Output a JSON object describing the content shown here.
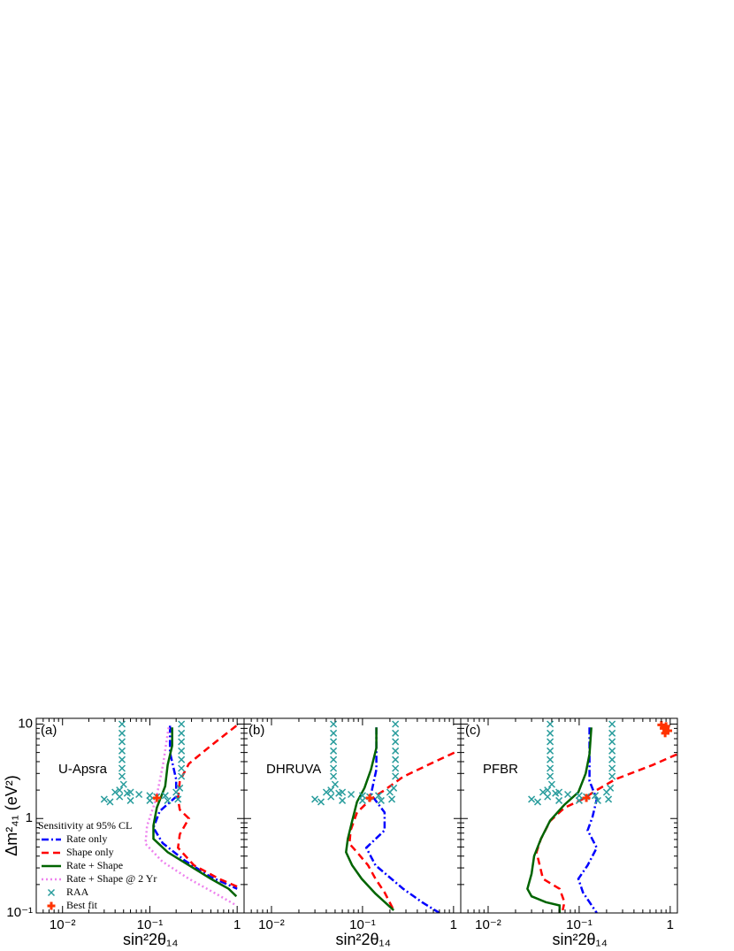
{
  "chart_data": [
    {
      "type": "line",
      "panel_label": "(a)",
      "title": "U-Apsra",
      "log_x": true,
      "log_y": true,
      "xlim": [
        0.005,
        1.2
      ],
      "ylim": [
        0.1,
        11.5
      ],
      "xticks": [
        {
          "value": 0.01,
          "label": "10⁻²"
        },
        {
          "value": 0.1,
          "label": "10⁻¹"
        },
        1
      ],
      "yticks": [
        {
          "value": 0.1,
          "label": "10⁻¹"
        },
        1,
        10
      ],
      "x_label": "sin²2θ₁₄",
      "y_label": "Δm²₄₁ (eV²)",
      "legend": {
        "title": "Sensitivity at 95% CL",
        "position": "lower left"
      },
      "series": [
        {
          "name": "Rate only",
          "color": "#0000ff",
          "style": "dashdot",
          "x": [
            0.17,
            0.17,
            0.2,
            0.2,
            0.13,
            0.11,
            0.14,
            0.25,
            0.5,
            1.0
          ],
          "y": [
            9.6,
            5,
            2.6,
            1.7,
            1.2,
            0.8,
            0.55,
            0.36,
            0.24,
            0.18
          ]
        },
        {
          "name": "Shape only",
          "color": "#ff0000",
          "style": "dashed",
          "x": [
            0.98,
            0.5,
            0.28,
            0.22,
            0.21,
            0.22,
            0.28,
            0.22,
            0.21,
            0.32,
            0.62,
            1.0
          ],
          "y": [
            9.6,
            5.9,
            3.8,
            2.5,
            1.6,
            1.24,
            1.0,
            0.68,
            0.49,
            0.32,
            0.23,
            0.19
          ]
        },
        {
          "name": "Rate + Shape",
          "color": "#006400",
          "style": "solid",
          "x": [
            0.18,
            0.18,
            0.16,
            0.15,
            0.12,
            0.11,
            0.11,
            0.16,
            0.28,
            0.5,
            0.8,
            0.98
          ],
          "y": [
            9.2,
            5.9,
            3.7,
            2.2,
            1.3,
            0.84,
            0.61,
            0.44,
            0.32,
            0.23,
            0.18,
            0.15
          ]
        },
        {
          "name": "Rate + Shape @ 2 Yr",
          "color": "#ee82ee",
          "style": "dotted",
          "x": [
            0.164,
            0.142,
            0.118,
            0.093,
            0.089,
            0.139,
            0.28,
            0.57,
            0.98
          ],
          "y": [
            9.2,
            3.8,
            1.6,
            0.84,
            0.54,
            0.35,
            0.23,
            0.16,
            0.12
          ]
        },
        {
          "name": "RAA",
          "color": "#2a9d9d",
          "style": "x",
          "x": [
            0.048,
            0.048,
            0.048,
            0.048,
            0.048,
            0.048,
            0.048,
            0.23,
            0.23,
            0.23,
            0.23,
            0.23,
            0.23,
            0.23,
            0.05,
            0.045,
            0.04,
            0.055,
            0.06,
            0.075,
            0.1,
            0.12,
            0.15,
            0.2,
            0.22,
            0.21,
            0.16,
            0.1,
            0.06,
            0.035,
            0.03,
            0.045
          ],
          "y": [
            10,
            8,
            6.5,
            5.2,
            4.2,
            3.4,
            2.8,
            10,
            8,
            6.5,
            5.2,
            4.2,
            3.4,
            2.8,
            2.3,
            2.0,
            1.9,
            1.85,
            1.9,
            1.8,
            1.75,
            1.7,
            1.75,
            1.9,
            2.1,
            1.6,
            1.55,
            1.55,
            1.55,
            1.5,
            1.6,
            1.7
          ]
        },
        {
          "name": "Best fit",
          "color": "#ff3300",
          "style": "plus",
          "x": [
            0.12
          ],
          "y": [
            1.65
          ]
        }
      ]
    },
    {
      "type": "line",
      "panel_label": "(b)",
      "title": "DHRUVA",
      "log_x": true,
      "log_y": true,
      "xlim": [
        0.005,
        1.2
      ],
      "ylim": [
        0.1,
        11.5
      ],
      "xticks": [
        {
          "value": 0.01,
          "label": "10⁻²"
        },
        {
          "value": 0.1,
          "label": "10⁻¹"
        },
        1
      ],
      "yticks": [
        0.1,
        1,
        10
      ],
      "x_label": "sin²2θ₁₄",
      "series": [
        {
          "color": "#0000ff",
          "style": "dashdot",
          "x": [
            0.142,
            0.142,
            0.124,
            0.175,
            0.175,
            0.11,
            0.139,
            0.28,
            0.45,
            0.7
          ],
          "y": [
            9.2,
            3.3,
            1.8,
            1.16,
            0.75,
            0.49,
            0.32,
            0.18,
            0.13,
            0.1
          ]
        },
        {
          "color": "#ff0000",
          "style": "dashed",
          "x": [
            1.02,
            0.57,
            0.28,
            0.175,
            0.124,
            0.087,
            0.074,
            0.072,
            0.087,
            0.115,
            0.139,
            0.175,
            0.22
          ],
          "y": [
            4.98,
            3.84,
            2.77,
            2.0,
            1.61,
            1.16,
            0.75,
            0.54,
            0.44,
            0.32,
            0.23,
            0.165,
            0.107
          ]
        },
        {
          "color": "#006400",
          "style": "solid",
          "x": [
            0.142,
            0.142,
            0.124,
            0.105,
            0.087,
            0.077,
            0.069,
            0.066,
            0.077,
            0.098,
            0.139,
            0.22
          ],
          "y": [
            9.2,
            5.6,
            3.3,
            2.1,
            1.5,
            0.94,
            0.61,
            0.44,
            0.32,
            0.23,
            0.16,
            0.107
          ]
        },
        {
          "color": "#2a9d9d",
          "style": "x",
          "x": [
            0.048,
            0.048,
            0.048,
            0.048,
            0.048,
            0.048,
            0.048,
            0.23,
            0.23,
            0.23,
            0.23,
            0.23,
            0.23,
            0.23,
            0.05,
            0.045,
            0.04,
            0.055,
            0.06,
            0.075,
            0.1,
            0.12,
            0.15,
            0.2,
            0.22,
            0.21,
            0.16,
            0.1,
            0.06,
            0.035,
            0.03,
            0.045
          ],
          "y": [
            10,
            8,
            6.5,
            5.2,
            4.2,
            3.4,
            2.8,
            10,
            8,
            6.5,
            5.2,
            4.2,
            3.4,
            2.8,
            2.3,
            2.0,
            1.9,
            1.85,
            1.9,
            1.8,
            1.75,
            1.7,
            1.75,
            1.9,
            2.1,
            1.6,
            1.55,
            1.55,
            1.55,
            1.5,
            1.6,
            1.7
          ]
        },
        {
          "color": "#ff3300",
          "style": "plus",
          "x": [
            0.12
          ],
          "y": [
            1.65
          ]
        }
      ]
    },
    {
      "type": "line",
      "panel_label": "(c)",
      "title": "PFBR",
      "log_x": true,
      "log_y": true,
      "xlim": [
        0.005,
        1.2
      ],
      "ylim": [
        0.1,
        11.5
      ],
      "xticks": [
        {
          "value": 0.01,
          "label": "10⁻²"
        },
        {
          "value": 0.1,
          "label": "10⁻¹"
        },
        1
      ],
      "yticks": [
        0.1,
        1,
        10
      ],
      "x_label": "sin²2θ₁₄",
      "series": [
        {
          "color": "#0000ff",
          "style": "dashdot",
          "x": [
            0.13,
            0.13,
            0.156,
            0.14,
            0.124,
            0.156,
            0.124,
            0.098,
            0.11,
            0.156
          ],
          "y": [
            9.2,
            2.5,
            1.6,
            1.04,
            0.75,
            0.49,
            0.32,
            0.23,
            0.165,
            0.1
          ]
        },
        {
          "color": "#ff0000",
          "style": "dashed",
          "x": [
            1.18,
            0.64,
            0.25,
            0.156,
            0.11,
            0.069,
            0.048,
            0.038,
            0.034,
            0.04,
            0.061,
            0.069,
            0.066
          ],
          "y": [
            4.77,
            3.68,
            2.6,
            2.0,
            1.61,
            1.3,
            0.94,
            0.61,
            0.44,
            0.23,
            0.18,
            0.13,
            0.107
          ]
        },
        {
          "color": "#006400",
          "style": "solid",
          "x": [
            0.136,
            0.13,
            0.118,
            0.098,
            0.069,
            0.048,
            0.038,
            0.032,
            0.03,
            0.027,
            0.03,
            0.043,
            0.061,
            0.061
          ],
          "y": [
            9.2,
            4.8,
            3.0,
            1.9,
            1.4,
            0.95,
            0.61,
            0.4,
            0.26,
            0.18,
            0.15,
            0.13,
            0.12,
            0.1
          ]
        },
        {
          "color": "#2a9d9d",
          "style": "x",
          "x": [
            0.048,
            0.048,
            0.048,
            0.048,
            0.048,
            0.048,
            0.048,
            0.23,
            0.23,
            0.23,
            0.23,
            0.23,
            0.23,
            0.23,
            0.05,
            0.045,
            0.04,
            0.055,
            0.06,
            0.075,
            0.1,
            0.12,
            0.15,
            0.2,
            0.22,
            0.21,
            0.16,
            0.1,
            0.06,
            0.035,
            0.03,
            0.045
          ],
          "y": [
            10,
            8,
            6.5,
            5.2,
            4.2,
            3.4,
            2.8,
            10,
            8,
            6.5,
            5.2,
            4.2,
            3.4,
            2.8,
            2.3,
            2.0,
            1.9,
            1.85,
            1.9,
            1.8,
            1.75,
            1.7,
            1.75,
            1.9,
            2.1,
            1.6,
            1.55,
            1.55,
            1.55,
            1.5,
            1.6,
            1.7
          ]
        },
        {
          "color": "#ff3300",
          "style": "plus",
          "x": [
            0.12,
            0.85,
            0.9,
            0.95,
            0.8,
            0.88
          ],
          "y": [
            1.65,
            9,
            9.5,
            8.5,
            9.8,
            8
          ]
        }
      ]
    }
  ]
}
